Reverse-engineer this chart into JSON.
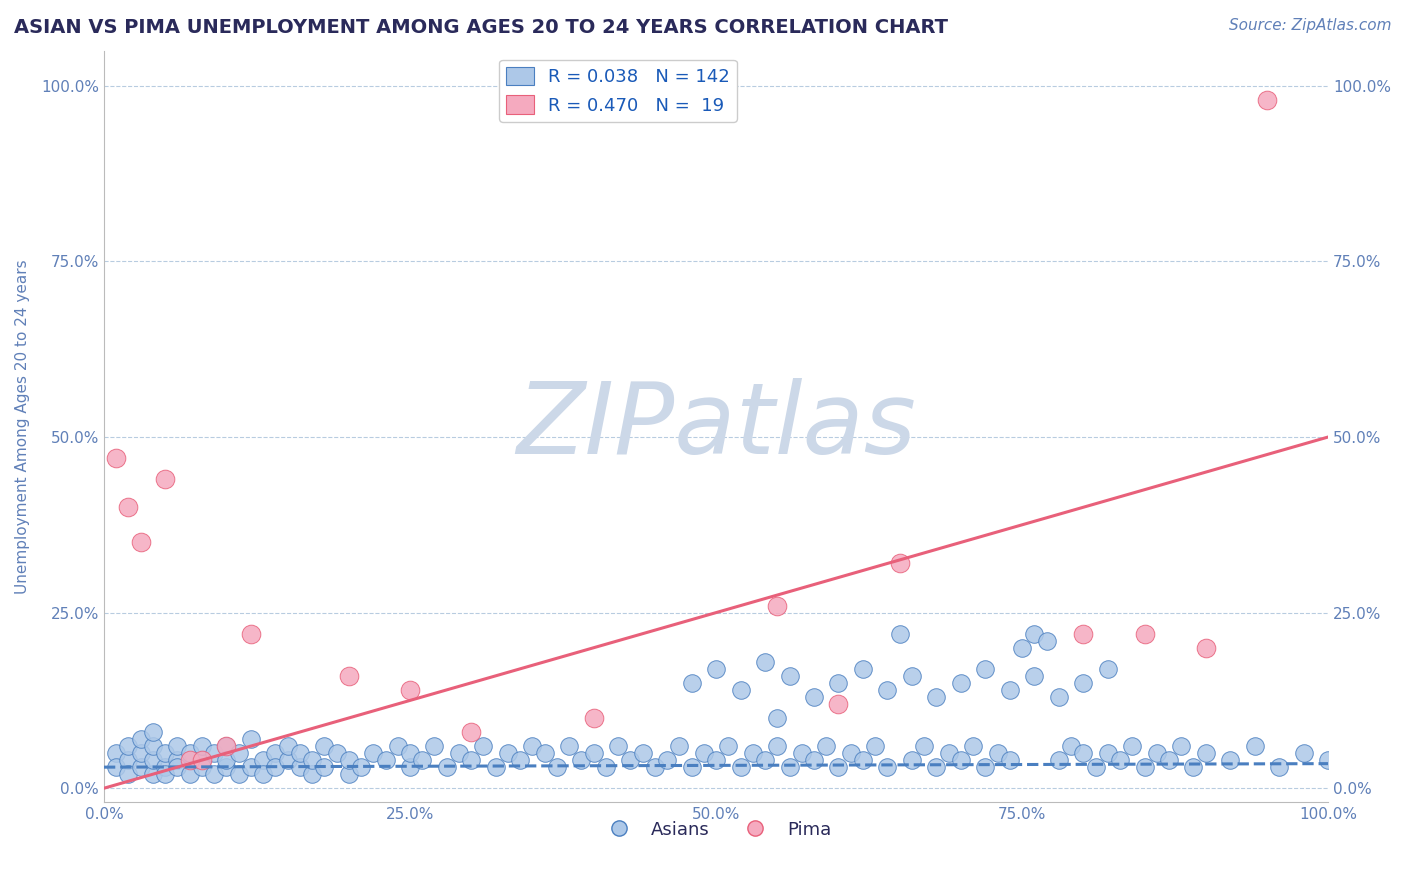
{
  "title": "ASIAN VS PIMA UNEMPLOYMENT AMONG AGES 20 TO 24 YEARS CORRELATION CHART",
  "source": "Source: ZipAtlas.com",
  "ylabel": "Unemployment Among Ages 20 to 24 years",
  "xlim": [
    0.0,
    1.0
  ],
  "ylim": [
    -0.02,
    1.05
  ],
  "asian_R": 0.038,
  "asian_N": 142,
  "pima_R": 0.47,
  "pima_N": 19,
  "asian_color": "#adc8e8",
  "pima_color": "#f5aabf",
  "asian_line_color": "#4a7fc0",
  "pima_line_color": "#e8607a",
  "title_color": "#2a2a5a",
  "axis_label_color": "#6080b8",
  "tick_color": "#6080b8",
  "grid_color": "#b8cce0",
  "watermark_color": "#ccd8e8",
  "legend_label_color": "#1a5ab8",
  "background_color": "#ffffff",
  "title_fontsize": 14,
  "source_fontsize": 11,
  "axis_label_fontsize": 11,
  "tick_fontsize": 11,
  "legend_fontsize": 13,
  "watermark_fontsize": 72,
  "asian_line_start_y": 0.03,
  "asian_line_end_y": 0.035,
  "pima_line_start_y": 0.0,
  "pima_line_end_y": 0.5,
  "xtick_vals": [
    0.0,
    0.25,
    0.5,
    0.75,
    1.0
  ],
  "xtick_labels": [
    "0.0%",
    "25.0%",
    "50.0%",
    "75.0%",
    "100.0%"
  ],
  "ytick_vals": [
    0.0,
    0.25,
    0.5,
    0.75,
    1.0
  ],
  "ytick_labels": [
    "0.0%",
    "25.0%",
    "50.0%",
    "75.0%",
    "100.0%"
  ],
  "asian_x": [
    0.01,
    0.01,
    0.02,
    0.02,
    0.02,
    0.03,
    0.03,
    0.03,
    0.04,
    0.04,
    0.04,
    0.04,
    0.05,
    0.05,
    0.05,
    0.06,
    0.06,
    0.06,
    0.07,
    0.07,
    0.08,
    0.08,
    0.08,
    0.09,
    0.09,
    0.1,
    0.1,
    0.1,
    0.11,
    0.11,
    0.12,
    0.12,
    0.13,
    0.13,
    0.14,
    0.14,
    0.15,
    0.15,
    0.16,
    0.16,
    0.17,
    0.17,
    0.18,
    0.18,
    0.19,
    0.2,
    0.2,
    0.21,
    0.22,
    0.23,
    0.24,
    0.25,
    0.25,
    0.26,
    0.27,
    0.28,
    0.29,
    0.3,
    0.31,
    0.32,
    0.33,
    0.34,
    0.35,
    0.36,
    0.37,
    0.38,
    0.39,
    0.4,
    0.41,
    0.42,
    0.43,
    0.44,
    0.45,
    0.46,
    0.47,
    0.48,
    0.49,
    0.5,
    0.51,
    0.52,
    0.53,
    0.54,
    0.55,
    0.55,
    0.56,
    0.57,
    0.58,
    0.59,
    0.6,
    0.61,
    0.62,
    0.63,
    0.64,
    0.65,
    0.66,
    0.67,
    0.68,
    0.69,
    0.7,
    0.71,
    0.72,
    0.73,
    0.74,
    0.75,
    0.76,
    0.77,
    0.78,
    0.79,
    0.8,
    0.81,
    0.82,
    0.83,
    0.84,
    0.85,
    0.86,
    0.87,
    0.88,
    0.89,
    0.9,
    0.92,
    0.94,
    0.96,
    0.98,
    1.0,
    0.48,
    0.5,
    0.52,
    0.54,
    0.56,
    0.58,
    0.6,
    0.62,
    0.64,
    0.66,
    0.68,
    0.7,
    0.72,
    0.74,
    0.76,
    0.78,
    0.8,
    0.82
  ],
  "asian_y": [
    0.05,
    0.03,
    0.04,
    0.06,
    0.02,
    0.03,
    0.05,
    0.07,
    0.02,
    0.04,
    0.06,
    0.08,
    0.03,
    0.05,
    0.02,
    0.04,
    0.06,
    0.03,
    0.05,
    0.02,
    0.04,
    0.06,
    0.03,
    0.02,
    0.05,
    0.03,
    0.06,
    0.04,
    0.02,
    0.05,
    0.03,
    0.07,
    0.04,
    0.02,
    0.05,
    0.03,
    0.04,
    0.06,
    0.03,
    0.05,
    0.02,
    0.04,
    0.06,
    0.03,
    0.05,
    0.02,
    0.04,
    0.03,
    0.05,
    0.04,
    0.06,
    0.03,
    0.05,
    0.04,
    0.06,
    0.03,
    0.05,
    0.04,
    0.06,
    0.03,
    0.05,
    0.04,
    0.06,
    0.05,
    0.03,
    0.06,
    0.04,
    0.05,
    0.03,
    0.06,
    0.04,
    0.05,
    0.03,
    0.04,
    0.06,
    0.03,
    0.05,
    0.04,
    0.06,
    0.03,
    0.05,
    0.04,
    0.06,
    0.1,
    0.03,
    0.05,
    0.04,
    0.06,
    0.03,
    0.05,
    0.04,
    0.06,
    0.03,
    0.22,
    0.04,
    0.06,
    0.03,
    0.05,
    0.04,
    0.06,
    0.03,
    0.05,
    0.04,
    0.2,
    0.22,
    0.21,
    0.04,
    0.06,
    0.05,
    0.03,
    0.05,
    0.04,
    0.06,
    0.03,
    0.05,
    0.04,
    0.06,
    0.03,
    0.05,
    0.04,
    0.06,
    0.03,
    0.05,
    0.04,
    0.15,
    0.17,
    0.14,
    0.18,
    0.16,
    0.13,
    0.15,
    0.17,
    0.14,
    0.16,
    0.13,
    0.15,
    0.17,
    0.14,
    0.16,
    0.13,
    0.15,
    0.17
  ],
  "pima_x": [
    0.01,
    0.02,
    0.03,
    0.05,
    0.07,
    0.08,
    0.1,
    0.12,
    0.2,
    0.25,
    0.3,
    0.4,
    0.55,
    0.6,
    0.65,
    0.8,
    0.85,
    0.9,
    0.95
  ],
  "pima_y": [
    0.47,
    0.4,
    0.35,
    0.44,
    0.04,
    0.04,
    0.06,
    0.22,
    0.16,
    0.14,
    0.08,
    0.1,
    0.26,
    0.12,
    0.32,
    0.22,
    0.22,
    0.2,
    0.98
  ]
}
